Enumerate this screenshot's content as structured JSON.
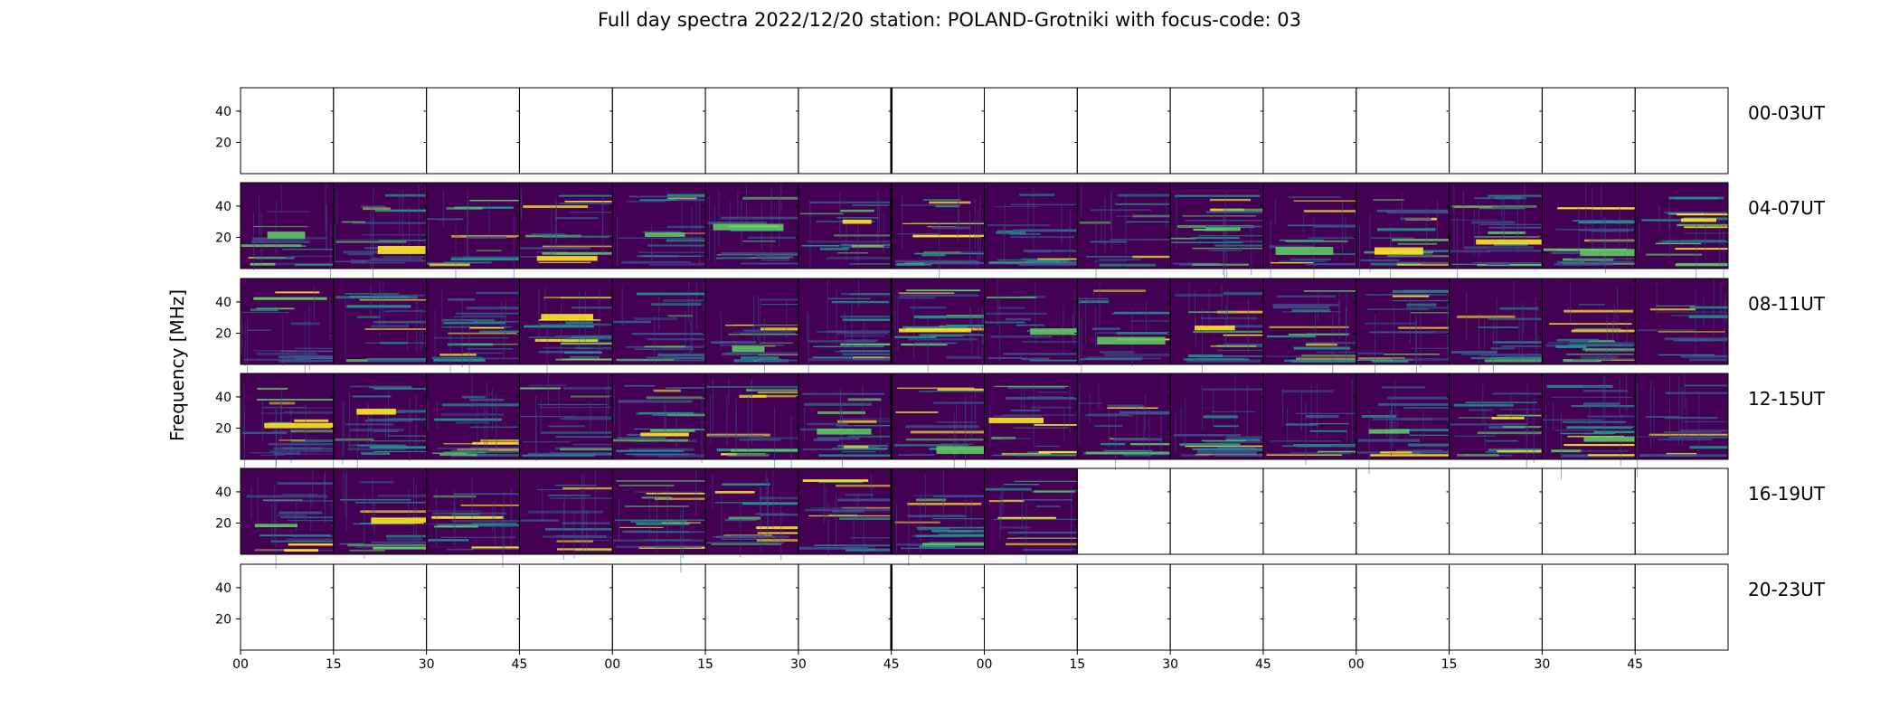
{
  "chart_data": {
    "type": "heatmap",
    "title": "Full day spectra 2022/12/20 station: POLAND-Grotniki with focus-code: 03",
    "ylabel": "Frequency [MHz]",
    "xlabel": "",
    "x_tick_labels": [
      "00",
      "15",
      "30",
      "45",
      "00",
      "15",
      "30",
      "45",
      "00",
      "15",
      "30",
      "45",
      "00",
      "15",
      "30",
      "45"
    ],
    "y_ticks": [
      20,
      40
    ],
    "ylim": [
      0,
      55
    ],
    "colormap": "viridis",
    "colors": {
      "background": "#440154",
      "low": "#3b528b",
      "mid": "#21918c",
      "high": "#5ec962",
      "peak": "#fde725"
    },
    "rows": [
      {
        "label": "00-03UT",
        "filled_panels": 0
      },
      {
        "label": "04-07UT",
        "filled_panels": 16
      },
      {
        "label": "08-11UT",
        "filled_panels": 16
      },
      {
        "label": "12-15UT",
        "filled_panels": 16
      },
      {
        "label": "16-19UT",
        "filled_panels": 9
      },
      {
        "label": "20-23UT",
        "filled_panels": 0
      }
    ]
  }
}
